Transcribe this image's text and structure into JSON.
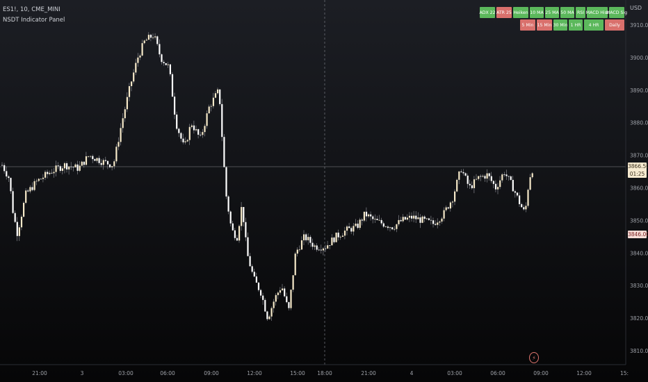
{
  "header": {
    "symbol_line": "ES1!, 10, CME_MINI",
    "indicator_name": "NSDT Indicator Panel"
  },
  "indicator_panel": {
    "row1": [
      {
        "label": "ADX 22",
        "color": "#5cb85c"
      },
      {
        "label": "ATR 25",
        "color": "#d9706c"
      },
      {
        "label": "Heiken",
        "color": "#5cb85c"
      },
      {
        "label": "10 MA",
        "color": "#5cb85c"
      },
      {
        "label": "25 MA",
        "color": "#5cb85c"
      },
      {
        "label": "50 MA",
        "color": "#5cb85c"
      },
      {
        "label": "RSI",
        "color": "#5cb85c"
      },
      {
        "label": "MACD Hist",
        "color": "#5cb85c"
      },
      {
        "label": "MACD Sig",
        "color": "#5cb85c"
      }
    ],
    "row2": [
      {
        "label": "5 Min",
        "color": "#d9706c"
      },
      {
        "label": "15 Min",
        "color": "#d9706c"
      },
      {
        "label": "30 Min",
        "color": "#5cb85c"
      },
      {
        "label": "1 HR",
        "color": "#5cb85c"
      },
      {
        "label": "4 HR",
        "color": "#5cb85c"
      },
      {
        "label": "Daily",
        "color": "#d9706c"
      }
    ]
  },
  "currency": "USD",
  "price_tags": {
    "current_price": "3866.50",
    "countdown": "01:25",
    "low_marker": "3846.00"
  },
  "colors": {
    "up_candle": "#f6e9c9",
    "down_candle": "#ffffff",
    "wick": "#9a9ca3",
    "grid_axis_text": "#9ea1a8",
    "price_line": "#8b8d93",
    "low_tag": "#f5dcd6",
    "current_tag": "#f6ead0"
  },
  "chart_data": {
    "type": "candlestick",
    "x_tick_labels": [
      "21:00",
      "3",
      "03:00",
      "06:00",
      "09:00",
      "12:00",
      "15:00",
      "18:00",
      "21:00",
      "4",
      "03:00",
      "06:00",
      "09:00",
      "12:00",
      "15:"
    ],
    "y_tick_labels": [
      "3910.00",
      "3900.00",
      "3890.00",
      "3880.00",
      "3870.00",
      "3860.00",
      "3850.00",
      "3840.00",
      "3830.00",
      "3820.00",
      "3810.00"
    ],
    "ylim": [
      3806,
      3915
    ],
    "last_price": 3866.5,
    "marked_price": 3846.0,
    "close_path": [
      {
        "t": 0,
        "close": 3867
      },
      {
        "t": 10,
        "close": 3863
      },
      {
        "t": 16,
        "close": 3852
      },
      {
        "t": 22,
        "close": 3846
      },
      {
        "t": 34,
        "close": 3858
      },
      {
        "t": 50,
        "close": 3862
      },
      {
        "t": 70,
        "close": 3865
      },
      {
        "t": 90,
        "close": 3867
      },
      {
        "t": 110,
        "close": 3866
      },
      {
        "t": 125,
        "close": 3870
      },
      {
        "t": 145,
        "close": 3868
      },
      {
        "t": 160,
        "close": 3867
      },
      {
        "t": 172,
        "close": 3880
      },
      {
        "t": 185,
        "close": 3892
      },
      {
        "t": 195,
        "close": 3900
      },
      {
        "t": 205,
        "close": 3905
      },
      {
        "t": 218,
        "close": 3907
      },
      {
        "t": 228,
        "close": 3900
      },
      {
        "t": 240,
        "close": 3897
      },
      {
        "t": 250,
        "close": 3880
      },
      {
        "t": 262,
        "close": 3872
      },
      {
        "t": 272,
        "close": 3880
      },
      {
        "t": 285,
        "close": 3875
      },
      {
        "t": 298,
        "close": 3885
      },
      {
        "t": 312,
        "close": 3890
      },
      {
        "t": 318,
        "close": 3870
      },
      {
        "t": 322,
        "close": 3858
      },
      {
        "t": 330,
        "close": 3847
      },
      {
        "t": 338,
        "close": 3845
      },
      {
        "t": 345,
        "close": 3855
      },
      {
        "t": 352,
        "close": 3840
      },
      {
        "t": 362,
        "close": 3832
      },
      {
        "t": 372,
        "close": 3828
      },
      {
        "t": 382,
        "close": 3820
      },
      {
        "t": 392,
        "close": 3826
      },
      {
        "t": 402,
        "close": 3830
      },
      {
        "t": 412,
        "close": 3822
      },
      {
        "t": 422,
        "close": 3840
      },
      {
        "t": 435,
        "close": 3845
      },
      {
        "t": 450,
        "close": 3842
      },
      {
        "t": 465,
        "close": 3842
      },
      {
        "t": 480,
        "close": 3845
      },
      {
        "t": 495,
        "close": 3847
      },
      {
        "t": 510,
        "close": 3848
      },
      {
        "t": 522,
        "close": 3852
      },
      {
        "t": 535,
        "close": 3850
      },
      {
        "t": 548,
        "close": 3849
      },
      {
        "t": 562,
        "close": 3848
      },
      {
        "t": 575,
        "close": 3850
      },
      {
        "t": 590,
        "close": 3851
      },
      {
        "t": 605,
        "close": 3850
      },
      {
        "t": 620,
        "close": 3849
      },
      {
        "t": 635,
        "close": 3852
      },
      {
        "t": 648,
        "close": 3857
      },
      {
        "t": 660,
        "close": 3866
      },
      {
        "t": 672,
        "close": 3860
      },
      {
        "t": 685,
        "close": 3863
      },
      {
        "t": 698,
        "close": 3864
      },
      {
        "t": 710,
        "close": 3860
      },
      {
        "t": 722,
        "close": 3865
      },
      {
        "t": 735,
        "close": 3860
      },
      {
        "t": 745,
        "close": 3855
      },
      {
        "t": 752,
        "close": 3852
      },
      {
        "t": 758,
        "close": 3863
      },
      {
        "t": 765,
        "close": 3867
      }
    ]
  }
}
